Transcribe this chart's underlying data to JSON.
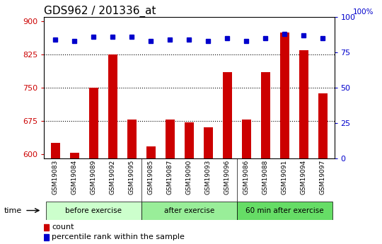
{
  "title": "GDS962 / 201336_at",
  "categories": [
    "GSM19083",
    "GSM19084",
    "GSM19089",
    "GSM19092",
    "GSM19095",
    "GSM19085",
    "GSM19087",
    "GSM19090",
    "GSM19093",
    "GSM19096",
    "GSM19086",
    "GSM19088",
    "GSM19091",
    "GSM19094",
    "GSM19097"
  ],
  "counts": [
    625,
    603,
    750,
    825,
    678,
    618,
    678,
    672,
    660,
    785,
    678,
    785,
    875,
    835,
    738
  ],
  "percentile": [
    84,
    83,
    86,
    86,
    86,
    83,
    84,
    84,
    83,
    85,
    83,
    85,
    88,
    87,
    85
  ],
  "groups": [
    {
      "label": "before exercise",
      "start": 0,
      "end": 5
    },
    {
      "label": "after exercise",
      "start": 5,
      "end": 10
    },
    {
      "label": "60 min after exercise",
      "start": 10,
      "end": 15
    }
  ],
  "group_colors": [
    "#ccffcc",
    "#99ee99",
    "#66dd66"
  ],
  "ylim_left": [
    590,
    910
  ],
  "ylim_right": [
    0,
    100
  ],
  "yticks_left": [
    600,
    675,
    750,
    825,
    900
  ],
  "yticks_right": [
    0,
    25,
    50,
    75,
    100
  ],
  "bar_color": "#cc0000",
  "dot_color": "#0000cc",
  "bar_width": 0.5,
  "grid_color": "black",
  "title_fontsize": 11,
  "tick_fontsize": 8,
  "xtick_fontsize": 6.5,
  "label_color_left": "#cc0000",
  "label_color_right": "#0000cc",
  "legend_items": [
    "count",
    "percentile rank within the sample"
  ],
  "bg_color_plot": "#ffffff",
  "bg_color_fig": "#ffffff",
  "gray_bg": "#c8c8c8"
}
